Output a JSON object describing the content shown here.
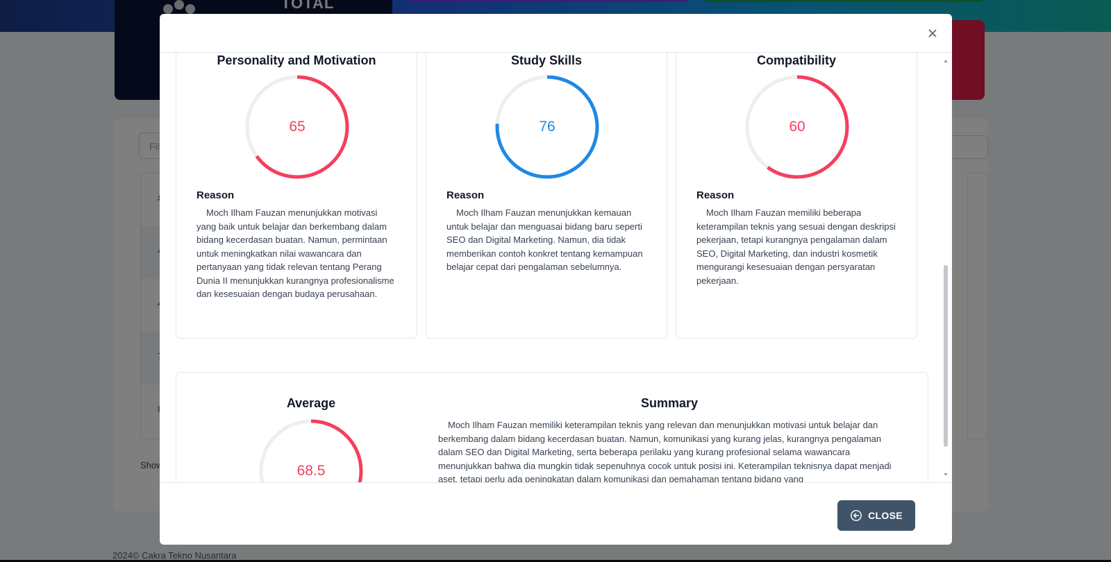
{
  "background": {
    "total_label": "TOTAL",
    "filter_placeholder": "Fil",
    "row_numbers": [
      "4",
      "4",
      "7",
      "8"
    ],
    "show_label": "Show",
    "footer": "2024©  Cakra Tekno Nusantara"
  },
  "colors": {
    "red": "#f43f5e",
    "blue": "#1e88e5",
    "track": "#eeeeee",
    "button": "#3f5468"
  },
  "modal": {
    "cards": [
      {
        "title": "Personality and Motivation",
        "score": 65,
        "color": "red",
        "reason_title": "Reason",
        "reason": "Moch Ilham Fauzan menunjukkan motivasi yang baik untuk belajar dan berkembang dalam bidang kecerdasan buatan. Namun, permintaan untuk meningkatkan nilai wawancara dan pertanyaan yang tidak relevan tentang Perang Dunia II menunjukkan kurangnya profesionalisme dan kesesuaian dengan budaya perusahaan."
      },
      {
        "title": "Study Skills",
        "score": 76,
        "color": "blue",
        "reason_title": "Reason",
        "reason": "Moch Ilham Fauzan menunjukkan kemauan untuk belajar dan menguasai bidang baru seperti SEO dan Digital Marketing. Namun, dia tidak memberikan contoh konkret tentang kemampuan belajar cepat dari pengalaman sebelumnya."
      },
      {
        "title": "Compatibility",
        "score": 60,
        "color": "red",
        "reason_title": "Reason",
        "reason": "Moch Ilham Fauzan memiliki beberapa keterampilan teknis yang sesuai dengan deskripsi pekerjaan, tetapi kurangnya pengalaman dalam SEO, Digital Marketing, dan industri kosmetik mengurangi kesesuaian dengan persyaratan pekerjaan."
      }
    ],
    "average": {
      "title": "Average",
      "score": 68.5
    },
    "summary": {
      "title": "Summary",
      "text": "Moch Ilham Fauzan memiliki keterampilan teknis yang relevan dan menunjukkan motivasi untuk belajar dan berkembang dalam bidang kecerdasan buatan. Namun, komunikasi yang kurang jelas, kurangnya pengalaman dalam SEO dan Digital Marketing, serta beberapa perilaku yang kurang profesional selama wawancara menunjukkan bahwa dia mungkin tidak sepenuhnya cocok untuk posisi ini. Keterampilan teknisnya dapat menjadi aset, tetapi perlu ada peningkatan dalam komunikasi dan pemahaman tentang bidang yang"
    },
    "close_button": "CLOSE",
    "close_icon": "arrow-left-circle-icon"
  }
}
